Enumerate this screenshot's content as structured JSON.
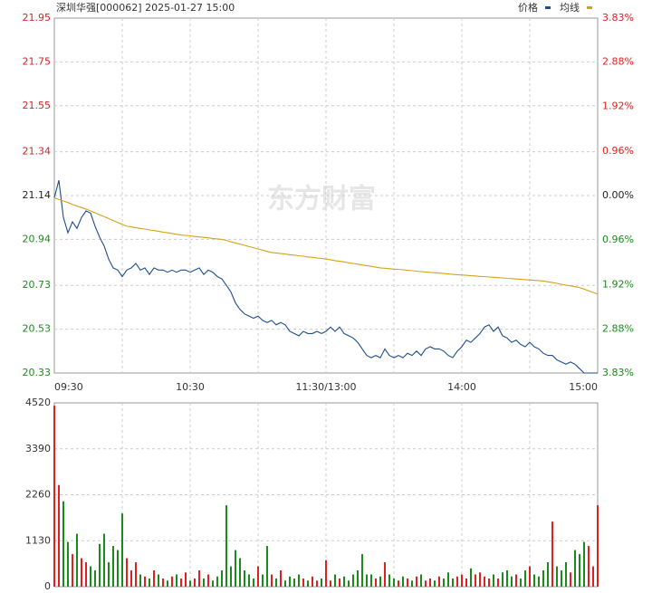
{
  "chart_data": [
    {
      "type": "line",
      "title": "深圳华强[000062] 2025-01-27 15:00",
      "watermark": "东方财富",
      "xlim": [
        0,
        240
      ],
      "xticks": [
        {
          "value": 0,
          "label": "09:30"
        },
        {
          "value": 60,
          "label": "10:30"
        },
        {
          "value": 120,
          "label": "11:30/13:00"
        },
        {
          "value": 180,
          "label": "14:00"
        },
        {
          "value": 240,
          "label": "15:00"
        }
      ],
      "ylim": [
        20.33,
        21.95
      ],
      "yticks": [
        21.95,
        21.75,
        21.55,
        21.34,
        21.14,
        20.94,
        20.73,
        20.53,
        20.33
      ],
      "y2lim": [
        -3.83,
        3.83
      ],
      "y2ticks": [
        {
          "value": 3.83,
          "label": "3.83%"
        },
        {
          "value": 2.88,
          "label": "2.88%"
        },
        {
          "value": 1.92,
          "label": "1.92%"
        },
        {
          "value": 0.96,
          "label": "0.96%"
        },
        {
          "value": 0,
          "label": "0.00%"
        },
        {
          "value": -0.96,
          "label": "0.96%"
        },
        {
          "value": -1.92,
          "label": "1.92%"
        },
        {
          "value": -2.88,
          "label": "2.88%"
        },
        {
          "value": -3.83,
          "label": "3.83%"
        }
      ],
      "grid": true,
      "legend": "top-right",
      "series": [
        {
          "name": "价格",
          "color": "#1f4e8c",
          "values": [
            21.13,
            21.21,
            21.04,
            20.97,
            21.02,
            20.99,
            21.04,
            21.07,
            21.06,
            21.0,
            20.95,
            20.91,
            20.85,
            20.81,
            20.8,
            20.77,
            20.8,
            20.81,
            20.83,
            20.8,
            20.81,
            20.78,
            20.81,
            20.8,
            20.8,
            20.79,
            20.8,
            20.79,
            20.8,
            20.8,
            20.79,
            20.8,
            20.81,
            20.78,
            20.8,
            20.79,
            20.77,
            20.76,
            20.73,
            20.7,
            20.65,
            20.62,
            20.6,
            20.59,
            20.58,
            20.59,
            20.57,
            20.56,
            20.57,
            20.55,
            20.56,
            20.55,
            20.52,
            20.51,
            20.5,
            20.52,
            20.51,
            20.51,
            20.52,
            20.51,
            20.52,
            20.54,
            20.52,
            20.54,
            20.51,
            20.5,
            20.49,
            20.47,
            20.44,
            20.41,
            20.4,
            20.41,
            20.4,
            20.44,
            20.41,
            20.4,
            20.41,
            20.4,
            20.42,
            20.41,
            20.43,
            20.41,
            20.44,
            20.45,
            20.44,
            20.44,
            20.43,
            20.41,
            20.4,
            20.43,
            20.45,
            20.48,
            20.47,
            20.49,
            20.51,
            20.54,
            20.55,
            20.52,
            20.54,
            20.5,
            20.49,
            20.47,
            20.48,
            20.46,
            20.45,
            20.47,
            20.45,
            20.44,
            20.42,
            20.41,
            20.41,
            20.39,
            20.38,
            20.37,
            20.38,
            20.37,
            20.35,
            20.33,
            20.33,
            20.33,
            20.33
          ]
        },
        {
          "name": "均线",
          "color": "#d4a21a",
          "values": [
            21.13,
            21.122,
            21.115,
            21.108,
            21.1,
            21.092,
            21.085,
            21.078,
            21.07,
            21.061,
            21.052,
            21.044,
            21.035,
            21.026,
            21.017,
            21.009,
            21.0,
            20.997,
            20.993,
            20.99,
            20.987,
            20.983,
            20.98,
            20.977,
            20.973,
            20.97,
            20.967,
            20.963,
            20.96,
            20.958,
            20.956,
            20.953,
            20.951,
            20.949,
            20.947,
            20.944,
            20.942,
            20.94,
            20.935,
            20.929,
            20.924,
            20.918,
            20.913,
            20.907,
            20.902,
            20.896,
            20.891,
            20.885,
            20.88,
            20.878,
            20.875,
            20.873,
            20.87,
            20.868,
            20.865,
            20.863,
            20.86,
            20.858,
            20.855,
            20.853,
            20.85,
            20.847,
            20.843,
            20.84,
            20.837,
            20.833,
            20.83,
            20.827,
            20.823,
            20.82,
            20.817,
            20.813,
            20.81,
            20.808,
            20.806,
            20.804,
            20.803,
            20.801,
            20.799,
            20.797,
            20.795,
            20.793,
            20.791,
            20.789,
            20.788,
            20.786,
            20.784,
            20.782,
            20.78,
            20.779,
            20.777,
            20.776,
            20.774,
            20.773,
            20.771,
            20.77,
            20.768,
            20.767,
            20.765,
            20.764,
            20.762,
            20.761,
            20.759,
            20.758,
            20.756,
            20.755,
            20.753,
            20.752,
            20.75,
            20.746,
            20.743,
            20.739,
            20.735,
            20.731,
            20.728,
            20.724,
            20.72,
            20.713,
            20.705,
            20.698,
            20.69
          ]
        }
      ]
    },
    {
      "type": "bar",
      "up_color": "#e02020",
      "down_color": "#1a8a1a",
      "ylim": [
        0,
        4520
      ],
      "yticks": [
        4520,
        3390,
        2260,
        1130,
        0
      ],
      "grid": true,
      "values": [
        4450,
        2500,
        2100,
        1100,
        800,
        1300,
        700,
        600,
        500,
        400,
        1050,
        1300,
        600,
        1000,
        900,
        1800,
        700,
        400,
        600,
        300,
        250,
        200,
        400,
        300,
        200,
        150,
        250,
        300,
        200,
        350,
        150,
        200,
        400,
        200,
        300,
        150,
        250,
        400,
        2000,
        500,
        900,
        700,
        400,
        300,
        200,
        500,
        300,
        1000,
        300,
        200,
        400,
        150,
        250,
        200,
        300,
        200,
        150,
        250,
        150,
        200,
        650,
        150,
        300,
        200,
        250,
        150,
        300,
        400,
        800,
        300,
        300,
        200,
        250,
        600,
        300,
        200,
        150,
        250,
        200,
        150,
        250,
        300,
        150,
        200,
        150,
        250,
        200,
        350,
        200,
        250,
        300,
        200,
        450,
        300,
        350,
        250,
        200,
        300,
        200,
        350,
        400,
        250,
        300,
        200,
        400,
        500,
        300,
        250,
        400,
        600,
        1600,
        500,
        400,
        600,
        350,
        900,
        800,
        1100,
        1000,
        500,
        2000
      ]
    }
  ]
}
